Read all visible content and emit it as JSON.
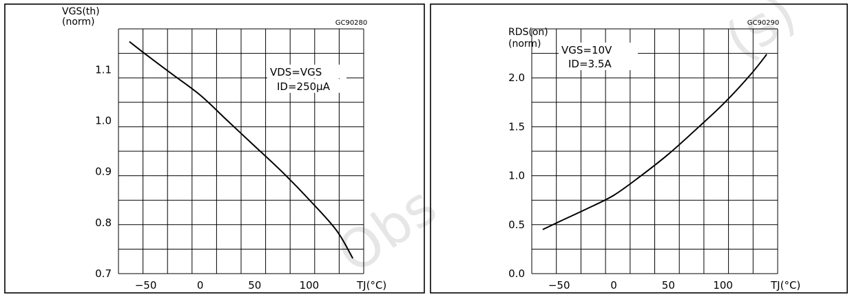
{
  "watermark": {
    "text_left": "Obs",
    "text_right": "(s)"
  },
  "chart_data": [
    {
      "type": "line",
      "figure_code": "GC90280",
      "ylabel_line1": "VGS(th)",
      "ylabel_line2": "(norm)",
      "xlabel": "TJ(°C)",
      "conditions": [
        "VDS=VGS",
        "ID=250μA"
      ],
      "xlim": [
        -75,
        150
      ],
      "ylim": [
        0.7,
        1.18
      ],
      "x_ticks": [
        -50,
        0,
        50,
        100
      ],
      "x_tick_labels": [
        "−50",
        "0",
        "50",
        "100"
      ],
      "y_ticks": [
        0.7,
        0.8,
        0.9,
        1.0,
        1.1
      ],
      "y_tick_labels": [
        "0.7",
        "0.8",
        "0.9",
        "1.0",
        "1.1"
      ],
      "grid": true,
      "series": [
        {
          "x": [
            -65,
            -50,
            -25,
            0,
            25,
            50,
            75,
            100,
            125,
            140
          ],
          "y": [
            1.155,
            1.13,
            1.09,
            1.05,
            1.0,
            0.95,
            0.9,
            0.845,
            0.785,
            0.73
          ]
        }
      ]
    },
    {
      "type": "line",
      "figure_code": "GC90290",
      "ylabel_line1": "RDS(on)",
      "ylabel_line2": "(norm)",
      "xlabel": "TJ(°C)",
      "conditions": [
        "VGS=10V",
        "ID=3.5A"
      ],
      "xlim": [
        -75,
        150
      ],
      "ylim": [
        0.0,
        2.5
      ],
      "x_ticks": [
        -50,
        0,
        50,
        100
      ],
      "x_tick_labels": [
        "−50",
        "0",
        "50",
        "100"
      ],
      "y_ticks": [
        0.0,
        0.5,
        1.0,
        1.5,
        2.0
      ],
      "y_tick_labels": [
        "0.0",
        "0.5",
        "1.0",
        "1.5",
        "2.0"
      ],
      "grid": true,
      "series": [
        {
          "x": [
            -65,
            -50,
            -25,
            0,
            25,
            50,
            75,
            100,
            125,
            140
          ],
          "y": [
            0.45,
            0.53,
            0.66,
            0.8,
            1.0,
            1.22,
            1.47,
            1.73,
            2.03,
            2.24
          ]
        }
      ]
    }
  ]
}
